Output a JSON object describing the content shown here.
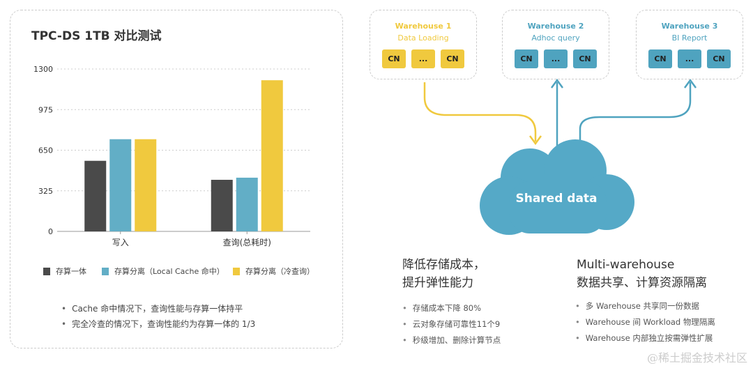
{
  "chart_data": {
    "type": "bar",
    "title": "TPC-DS 1TB 对比测试",
    "categories": [
      "写入",
      "查询(总耗时)"
    ],
    "yticks": [
      0,
      325,
      650,
      975,
      1300
    ],
    "ylim": [
      0,
      1300
    ],
    "grid": true,
    "legend_position": "bottom",
    "series": [
      {
        "name": "存算一体",
        "color": "#4a4a4a",
        "values": [
          565,
          413
        ]
      },
      {
        "name": "存算分离（Local Cache 命中）",
        "color": "#62aec6",
        "values": [
          738,
          430
        ]
      },
      {
        "name": "存算分离（冷查询）",
        "color": "#f0c93e",
        "values": [
          738,
          1210
        ]
      }
    ]
  },
  "notes": [
    "Cache 命中情况下，查询性能与存算一体持平",
    "完全冷查的情况下，查询性能约为存算一体的 1/3"
  ],
  "warehouses": [
    {
      "name": "Warehouse 1",
      "sub": "Data Loading",
      "color": "#f0c93e",
      "nodes": [
        "CN",
        "...",
        "CN"
      ]
    },
    {
      "name": "Warehouse 2",
      "sub": "Adhoc query",
      "color": "#4fa3bf",
      "nodes": [
        "CN",
        "...",
        "CN"
      ]
    },
    {
      "name": "Warehouse 3",
      "sub": "BI Report",
      "color": "#4fa3bf",
      "nodes": [
        "CN",
        "...",
        "CN"
      ]
    }
  ],
  "cloud": {
    "label": "Shared data",
    "color": "#55a9c7"
  },
  "left_block": {
    "heading": [
      "降低存储成本，",
      "提升弹性能力"
    ],
    "items": [
      "存储成本下降 80%",
      "云对象存储可靠性11个9",
      "秒级增加、删除计算节点"
    ]
  },
  "right_block": {
    "heading": [
      "Multi-warehouse",
      "数据共享、计算资源隔离"
    ],
    "items": [
      "多 Warehouse 共享同一份数据",
      "Warehouse 间 Workload 物理隔离",
      "Warehouse 内部独立按需弹性扩展"
    ]
  },
  "watermark": "@稀土掘金技术社区"
}
